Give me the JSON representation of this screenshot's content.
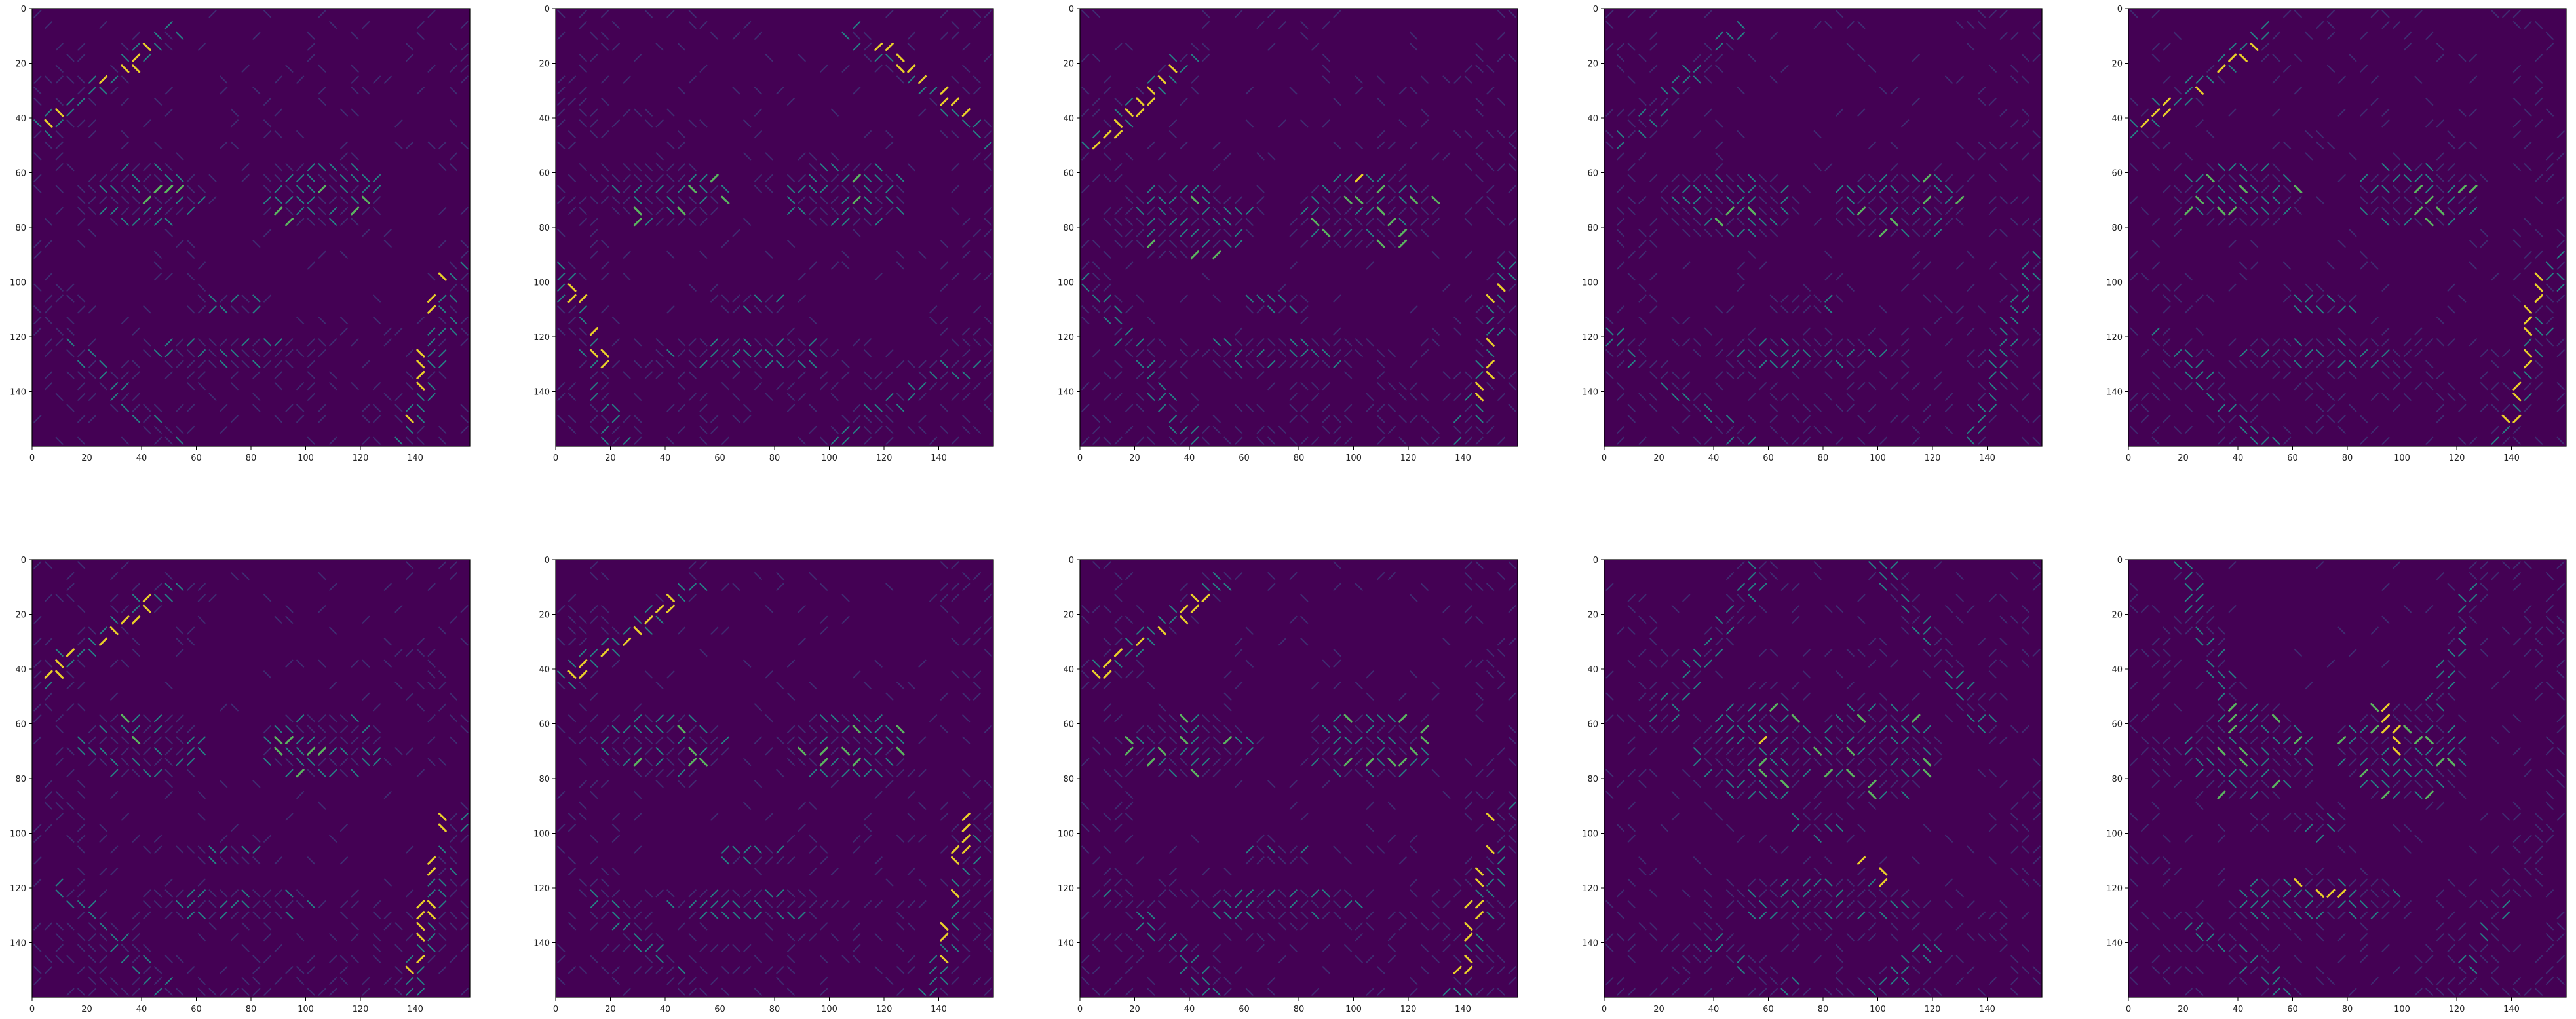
{
  "figure": {
    "rows": 2,
    "cols": 5,
    "colormap": "viridis",
    "background_hex": "#440154",
    "feature_hex": [
      "#3b528b",
      "#21918c",
      "#5ec962",
      "#fde725"
    ]
  },
  "chart_data": [
    {
      "type": "heatmap",
      "panel": "row1-col1",
      "xlim": [
        0,
        160
      ],
      "ylim": [
        160,
        0
      ],
      "xticks": [
        0,
        20,
        40,
        60,
        80,
        100,
        120,
        140
      ],
      "yticks": [
        0,
        20,
        40,
        60,
        80,
        100,
        120,
        140
      ],
      "variant": "A"
    },
    {
      "type": "heatmap",
      "panel": "row1-col2",
      "xlim": [
        0,
        160
      ],
      "ylim": [
        160,
        0
      ],
      "xticks": [
        0,
        20,
        40,
        60,
        80,
        100,
        120,
        140
      ],
      "yticks": [
        0,
        20,
        40,
        60,
        80,
        100,
        120,
        140
      ],
      "variant": "B"
    },
    {
      "type": "heatmap",
      "panel": "row1-col3",
      "xlim": [
        0,
        160
      ],
      "ylim": [
        160,
        0
      ],
      "xticks": [
        0,
        20,
        40,
        60,
        80,
        100,
        120,
        140
      ],
      "yticks": [
        0,
        20,
        40,
        60,
        80,
        100,
        120,
        140
      ],
      "variant": "C"
    },
    {
      "type": "heatmap",
      "panel": "row1-col4",
      "xlim": [
        0,
        160
      ],
      "ylim": [
        160,
        0
      ],
      "xticks": [
        0,
        20,
        40,
        60,
        80,
        100,
        120,
        140
      ],
      "yticks": [
        0,
        20,
        40,
        60,
        80,
        100,
        120,
        140
      ],
      "variant": "D"
    },
    {
      "type": "heatmap",
      "panel": "row1-col5",
      "xlim": [
        0,
        160
      ],
      "ylim": [
        160,
        0
      ],
      "xticks": [
        0,
        20,
        40,
        60,
        80,
        100,
        120,
        140
      ],
      "yticks": [
        0,
        20,
        40,
        60,
        80,
        100,
        120,
        140
      ],
      "variant": "A"
    },
    {
      "type": "heatmap",
      "panel": "row2-col1",
      "xlim": [
        0,
        160
      ],
      "ylim": [
        160,
        0
      ],
      "xticks": [
        0,
        20,
        40,
        60,
        80,
        100,
        120,
        140
      ],
      "yticks": [
        0,
        20,
        40,
        60,
        80,
        100,
        120,
        140
      ],
      "variant": "A"
    },
    {
      "type": "heatmap",
      "panel": "row2-col2",
      "xlim": [
        0,
        160
      ],
      "ylim": [
        160,
        0
      ],
      "xticks": [
        0,
        20,
        40,
        60,
        80,
        100,
        120,
        140
      ],
      "yticks": [
        0,
        20,
        40,
        60,
        80,
        100,
        120,
        140
      ],
      "variant": "A"
    },
    {
      "type": "heatmap",
      "panel": "row2-col3",
      "xlim": [
        0,
        160
      ],
      "ylim": [
        160,
        0
      ],
      "xticks": [
        0,
        20,
        40,
        60,
        80,
        100,
        120,
        140
      ],
      "yticks": [
        0,
        20,
        40,
        60,
        80,
        100,
        120,
        140
      ],
      "variant": "A"
    },
    {
      "type": "heatmap",
      "panel": "row2-col4",
      "xlim": [
        0,
        160
      ],
      "ylim": [
        160,
        0
      ],
      "xticks": [
        0,
        20,
        40,
        60,
        80,
        100,
        120,
        140
      ],
      "yticks": [
        0,
        20,
        40,
        60,
        80,
        100,
        120,
        140
      ],
      "variant": "E"
    },
    {
      "type": "heatmap",
      "panel": "row2-col5",
      "xlim": [
        0,
        160
      ],
      "ylim": [
        160,
        0
      ],
      "xticks": [
        0,
        20,
        40,
        60,
        80,
        100,
        120,
        140
      ],
      "yticks": [
        0,
        20,
        40,
        60,
        80,
        100,
        120,
        140
      ],
      "variant": "F"
    }
  ]
}
